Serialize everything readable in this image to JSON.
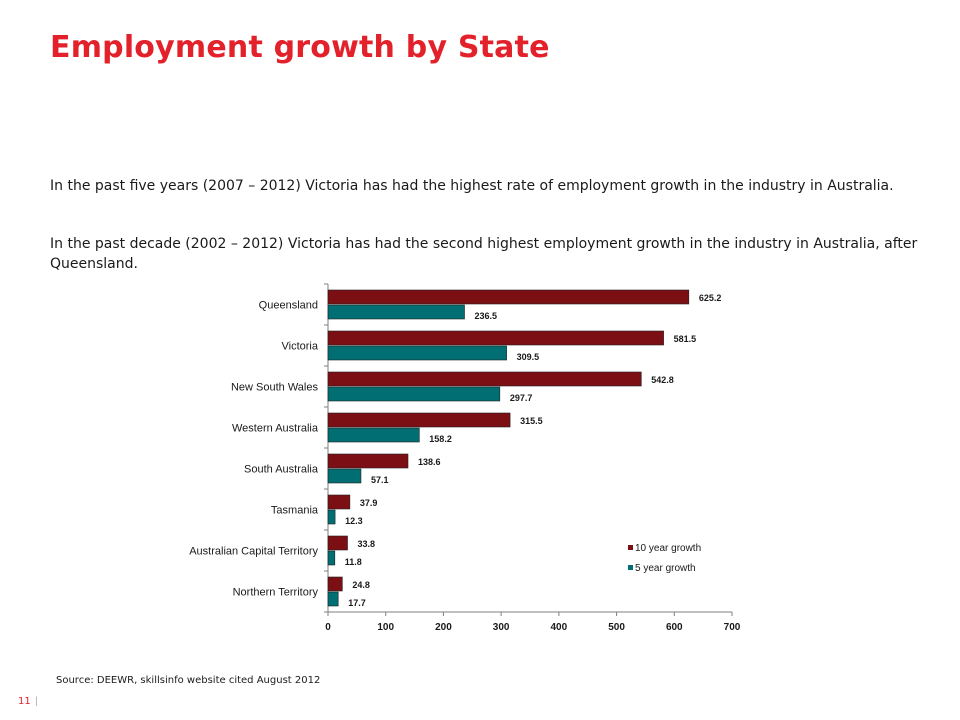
{
  "title": "Employment growth by State",
  "paragraphs": [
    "In the past five years (2007 – 2012) Victoria has had the highest rate of employment growth in the industry in Australia.",
    "In the past decade (2002 – 2012) Victoria has had the second highest employment growth in the industry in Australia, after Queensland."
  ],
  "source": "Source: DEEWR, skillsinfo website cited August 2012",
  "footer": {
    "page_number": "11",
    "separator": "|"
  },
  "chart_data": {
    "type": "bar",
    "orientation": "horizontal",
    "categories": [
      "Queensland",
      "Victoria",
      "New South Wales",
      "Western Australia",
      "South Australia",
      "Tasmania",
      "Australian Capital Territory",
      "Northern Territory"
    ],
    "series": [
      {
        "name": "10 year growth",
        "color": "#7b0f13",
        "values": [
          625.2,
          581.5,
          542.8,
          315.5,
          138.6,
          37.9,
          33.8,
          24.8
        ]
      },
      {
        "name": "5 year growth",
        "color": "#006e72",
        "values": [
          236.5,
          309.5,
          297.7,
          158.2,
          57.1,
          12.3,
          11.8,
          17.7
        ]
      }
    ],
    "xlim": [
      0,
      700
    ],
    "xticks": [
      0,
      100,
      200,
      300,
      400,
      500,
      600,
      700
    ],
    "grid": false,
    "legend": "bottom-right",
    "data_labels": true
  }
}
